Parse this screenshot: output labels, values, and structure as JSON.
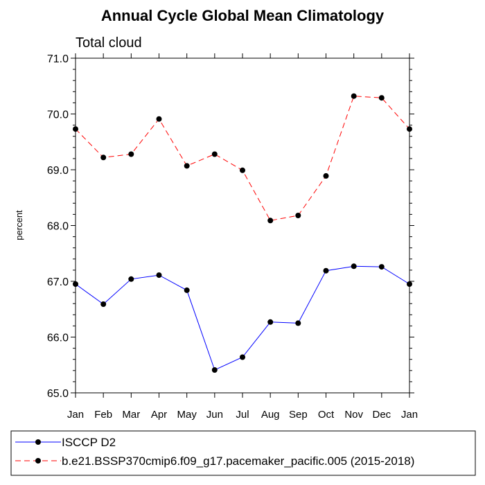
{
  "chart_data": {
    "type": "line",
    "title": "Annual Cycle Global Mean Climatology",
    "subtitle": "Total cloud",
    "ylabel": "percent",
    "xlabel": "",
    "categories": [
      "Jan",
      "Feb",
      "Mar",
      "Apr",
      "May",
      "Jun",
      "Jul",
      "Aug",
      "Sep",
      "Oct",
      "Nov",
      "Dec",
      "Jan"
    ],
    "ylim": [
      65.0,
      71.0
    ],
    "yticks": [
      "65.0",
      "66.0",
      "67.0",
      "68.0",
      "69.0",
      "70.0",
      "71.0"
    ],
    "grid": false,
    "legend_position": "bottom",
    "series": [
      {
        "name": "ISCCP D2",
        "color": "#0000ff",
        "line_style": "solid",
        "marker": "filled-circle",
        "values": [
          66.95,
          66.59,
          67.04,
          67.11,
          66.84,
          65.41,
          65.64,
          66.27,
          66.25,
          67.19,
          67.27,
          67.26,
          66.95
        ]
      },
      {
        "name": "b.e21.BSSP370cmip6.f09_g17.pacemaker_pacific.005 (2015-2018)",
        "color": "#ff0000",
        "line_style": "dashed",
        "marker": "filled-circle",
        "values": [
          69.73,
          69.22,
          69.28,
          69.91,
          69.07,
          69.28,
          68.99,
          68.09,
          68.18,
          68.89,
          70.32,
          70.29,
          69.73
        ]
      }
    ]
  }
}
